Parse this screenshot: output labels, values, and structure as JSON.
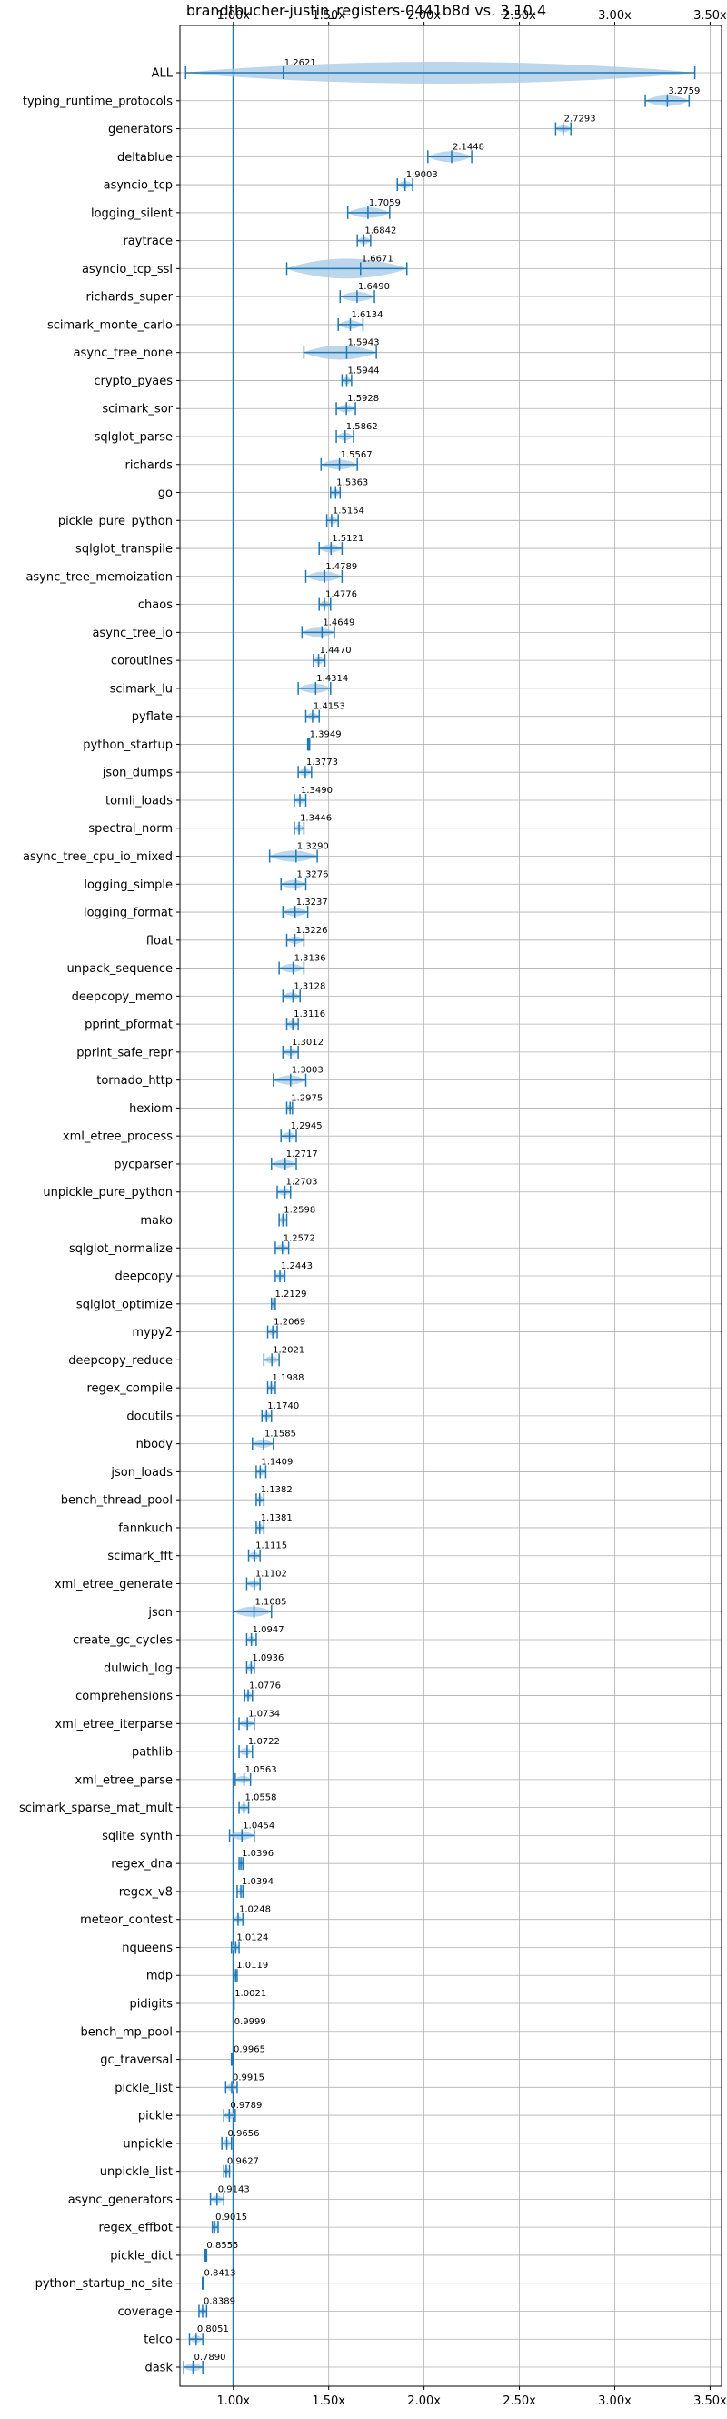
{
  "chart_data": {
    "type": "violin",
    "title": "brandtbucher-justin_registers-0441b8d vs. 3.10.4",
    "xlabel": "",
    "ylabel": "",
    "xlim": [
      0.72,
      3.56
    ],
    "x_ticks": [
      1.0,
      1.5,
      2.0,
      2.5,
      3.0,
      3.5
    ],
    "x_tick_labels": [
      "1.00x",
      "1.50x",
      "2.00x",
      "2.50x",
      "3.00x",
      "3.50x"
    ],
    "reference_line": 1.0,
    "grid": true,
    "colors": {
      "violin": "#a6c8e6",
      "line": "#1f77b4"
    },
    "benchmarks": [
      {
        "name": "ALL",
        "label": "1.2621",
        "mean": 1.2621,
        "min": 0.75,
        "max": 3.42
      },
      {
        "name": "typing_runtime_protocols",
        "label": "3.2759",
        "mean": 3.2759,
        "min": 3.16,
        "max": 3.39
      },
      {
        "name": "generators",
        "label": "2.7293",
        "mean": 2.7293,
        "min": 2.69,
        "max": 2.77
      },
      {
        "name": "deltablue",
        "label": "2.1448",
        "mean": 2.1448,
        "min": 2.02,
        "max": 2.25
      },
      {
        "name": "asyncio_tcp",
        "label": "1.9003",
        "mean": 1.9003,
        "min": 1.86,
        "max": 1.94
      },
      {
        "name": "logging_silent",
        "label": "1.7059",
        "mean": 1.7059,
        "min": 1.6,
        "max": 1.82
      },
      {
        "name": "raytrace",
        "label": "1.6842",
        "mean": 1.6842,
        "min": 1.65,
        "max": 1.72
      },
      {
        "name": "asyncio_tcp_ssl",
        "label": "1.6671",
        "mean": 1.6671,
        "min": 1.28,
        "max": 1.91
      },
      {
        "name": "richards_super",
        "label": "1.6490",
        "mean": 1.649,
        "min": 1.56,
        "max": 1.74
      },
      {
        "name": "scimark_monte_carlo",
        "label": "1.6134",
        "mean": 1.6134,
        "min": 1.55,
        "max": 1.68
      },
      {
        "name": "async_tree_none",
        "label": "1.5943",
        "mean": 1.5943,
        "min": 1.37,
        "max": 1.75
      },
      {
        "name": "crypto_pyaes",
        "label": "1.5944",
        "mean": 1.5944,
        "min": 1.57,
        "max": 1.62
      },
      {
        "name": "scimark_sor",
        "label": "1.5928",
        "mean": 1.5928,
        "min": 1.54,
        "max": 1.64
      },
      {
        "name": "sqlglot_parse",
        "label": "1.5862",
        "mean": 1.5862,
        "min": 1.54,
        "max": 1.63
      },
      {
        "name": "richards",
        "label": "1.5567",
        "mean": 1.5567,
        "min": 1.46,
        "max": 1.65
      },
      {
        "name": "go",
        "label": "1.5363",
        "mean": 1.5363,
        "min": 1.51,
        "max": 1.56
      },
      {
        "name": "pickle_pure_python",
        "label": "1.5154",
        "mean": 1.5154,
        "min": 1.49,
        "max": 1.55
      },
      {
        "name": "sqlglot_transpile",
        "label": "1.5121",
        "mean": 1.5121,
        "min": 1.45,
        "max": 1.57
      },
      {
        "name": "async_tree_memoization",
        "label": "1.4789",
        "mean": 1.4789,
        "min": 1.38,
        "max": 1.57
      },
      {
        "name": "chaos",
        "label": "1.4776",
        "mean": 1.4776,
        "min": 1.45,
        "max": 1.51
      },
      {
        "name": "async_tree_io",
        "label": "1.4649",
        "mean": 1.4649,
        "min": 1.36,
        "max": 1.53
      },
      {
        "name": "coroutines",
        "label": "1.4470",
        "mean": 1.447,
        "min": 1.42,
        "max": 1.48
      },
      {
        "name": "scimark_lu",
        "label": "1.4314",
        "mean": 1.4314,
        "min": 1.34,
        "max": 1.51
      },
      {
        "name": "pyflate",
        "label": "1.4153",
        "mean": 1.4153,
        "min": 1.38,
        "max": 1.45
      },
      {
        "name": "python_startup",
        "label": "1.3949",
        "mean": 1.3949,
        "min": 1.39,
        "max": 1.4
      },
      {
        "name": "json_dumps",
        "label": "1.3773",
        "mean": 1.3773,
        "min": 1.34,
        "max": 1.41
      },
      {
        "name": "tomli_loads",
        "label": "1.3490",
        "mean": 1.349,
        "min": 1.32,
        "max": 1.38
      },
      {
        "name": "spectral_norm",
        "label": "1.3446",
        "mean": 1.3446,
        "min": 1.32,
        "max": 1.37
      },
      {
        "name": "async_tree_cpu_io_mixed",
        "label": "1.3290",
        "mean": 1.329,
        "min": 1.19,
        "max": 1.44
      },
      {
        "name": "logging_simple",
        "label": "1.3276",
        "mean": 1.3276,
        "min": 1.25,
        "max": 1.38
      },
      {
        "name": "logging_format",
        "label": "1.3237",
        "mean": 1.3237,
        "min": 1.26,
        "max": 1.39
      },
      {
        "name": "float",
        "label": "1.3226",
        "mean": 1.3226,
        "min": 1.28,
        "max": 1.37
      },
      {
        "name": "unpack_sequence",
        "label": "1.3136",
        "mean": 1.3136,
        "min": 1.24,
        "max": 1.37
      },
      {
        "name": "deepcopy_memo",
        "label": "1.3128",
        "mean": 1.3128,
        "min": 1.26,
        "max": 1.35
      },
      {
        "name": "pprint_pformat",
        "label": "1.3116",
        "mean": 1.3116,
        "min": 1.28,
        "max": 1.34
      },
      {
        "name": "pprint_safe_repr",
        "label": "1.3012",
        "mean": 1.3012,
        "min": 1.26,
        "max": 1.34
      },
      {
        "name": "tornado_http",
        "label": "1.3003",
        "mean": 1.3003,
        "min": 1.21,
        "max": 1.38
      },
      {
        "name": "hexiom",
        "label": "1.2975",
        "mean": 1.2975,
        "min": 1.28,
        "max": 1.31
      },
      {
        "name": "xml_etree_process",
        "label": "1.2945",
        "mean": 1.2945,
        "min": 1.25,
        "max": 1.33
      },
      {
        "name": "pycparser",
        "label": "1.2717",
        "mean": 1.2717,
        "min": 1.2,
        "max": 1.33
      },
      {
        "name": "unpickle_pure_python",
        "label": "1.2703",
        "mean": 1.2703,
        "min": 1.23,
        "max": 1.3
      },
      {
        "name": "mako",
        "label": "1.2598",
        "mean": 1.2598,
        "min": 1.24,
        "max": 1.28
      },
      {
        "name": "sqlglot_normalize",
        "label": "1.2572",
        "mean": 1.2572,
        "min": 1.22,
        "max": 1.29
      },
      {
        "name": "deepcopy",
        "label": "1.2443",
        "mean": 1.2443,
        "min": 1.22,
        "max": 1.27
      },
      {
        "name": "sqlglot_optimize",
        "label": "1.2129",
        "mean": 1.2129,
        "min": 1.2,
        "max": 1.22
      },
      {
        "name": "mypy2",
        "label": "1.2069",
        "mean": 1.2069,
        "min": 1.18,
        "max": 1.23
      },
      {
        "name": "deepcopy_reduce",
        "label": "1.2021",
        "mean": 1.2021,
        "min": 1.16,
        "max": 1.24
      },
      {
        "name": "regex_compile",
        "label": "1.1988",
        "mean": 1.1988,
        "min": 1.18,
        "max": 1.22
      },
      {
        "name": "docutils",
        "label": "1.1740",
        "mean": 1.174,
        "min": 1.15,
        "max": 1.2
      },
      {
        "name": "nbody",
        "label": "1.1585",
        "mean": 1.1585,
        "min": 1.1,
        "max": 1.21
      },
      {
        "name": "json_loads",
        "label": "1.1409",
        "mean": 1.1409,
        "min": 1.12,
        "max": 1.17
      },
      {
        "name": "bench_thread_pool",
        "label": "1.1382",
        "mean": 1.1382,
        "min": 1.12,
        "max": 1.16
      },
      {
        "name": "fannkuch",
        "label": "1.1381",
        "mean": 1.1381,
        "min": 1.12,
        "max": 1.16
      },
      {
        "name": "scimark_fft",
        "label": "1.1115",
        "mean": 1.1115,
        "min": 1.08,
        "max": 1.14
      },
      {
        "name": "xml_etree_generate",
        "label": "1.1102",
        "mean": 1.1102,
        "min": 1.07,
        "max": 1.14
      },
      {
        "name": "json",
        "label": "1.1085",
        "mean": 1.1085,
        "min": 1.0,
        "max": 1.2
      },
      {
        "name": "create_gc_cycles",
        "label": "1.0947",
        "mean": 1.0947,
        "min": 1.07,
        "max": 1.12
      },
      {
        "name": "dulwich_log",
        "label": "1.0936",
        "mean": 1.0936,
        "min": 1.07,
        "max": 1.11
      },
      {
        "name": "comprehensions",
        "label": "1.0776",
        "mean": 1.0776,
        "min": 1.06,
        "max": 1.1
      },
      {
        "name": "xml_etree_iterparse",
        "label": "1.0734",
        "mean": 1.0734,
        "min": 1.03,
        "max": 1.11
      },
      {
        "name": "pathlib",
        "label": "1.0722",
        "mean": 1.0722,
        "min": 1.03,
        "max": 1.1
      },
      {
        "name": "xml_etree_parse",
        "label": "1.0563",
        "mean": 1.0563,
        "min": 1.01,
        "max": 1.09
      },
      {
        "name": "scimark_sparse_mat_mult",
        "label": "1.0558",
        "mean": 1.0558,
        "min": 1.03,
        "max": 1.08
      },
      {
        "name": "sqlite_synth",
        "label": "1.0454",
        "mean": 1.0454,
        "min": 0.98,
        "max": 1.11
      },
      {
        "name": "regex_dna",
        "label": "1.0396",
        "mean": 1.0396,
        "min": 1.03,
        "max": 1.05
      },
      {
        "name": "regex_v8",
        "label": "1.0394",
        "mean": 1.0394,
        "min": 1.02,
        "max": 1.05
      },
      {
        "name": "meteor_contest",
        "label": "1.0248",
        "mean": 1.0248,
        "min": 1.0,
        "max": 1.05
      },
      {
        "name": "nqueens",
        "label": "1.0124",
        "mean": 1.0124,
        "min": 0.99,
        "max": 1.03
      },
      {
        "name": "mdp",
        "label": "1.0119",
        "mean": 1.0119,
        "min": 1.0,
        "max": 1.02
      },
      {
        "name": "pidigits",
        "label": "1.0021",
        "mean": 1.0021,
        "min": 1.0,
        "max": 1.004
      },
      {
        "name": "bench_mp_pool",
        "label": "0.9999",
        "mean": 0.9999,
        "min": 0.9999,
        "max": 0.9999
      },
      {
        "name": "gc_traversal",
        "label": "0.9965",
        "mean": 0.9965,
        "min": 0.99,
        "max": 1.0
      },
      {
        "name": "pickle_list",
        "label": "0.9915",
        "mean": 0.9915,
        "min": 0.96,
        "max": 1.02
      },
      {
        "name": "pickle",
        "label": "0.9789",
        "mean": 0.9789,
        "min": 0.95,
        "max": 1.01
      },
      {
        "name": "unpickle",
        "label": "0.9656",
        "mean": 0.9656,
        "min": 0.94,
        "max": 0.99
      },
      {
        "name": "unpickle_list",
        "label": "0.9627",
        "mean": 0.9627,
        "min": 0.95,
        "max": 0.98
      },
      {
        "name": "async_generators",
        "label": "0.9143",
        "mean": 0.9143,
        "min": 0.88,
        "max": 0.95
      },
      {
        "name": "regex_effbot",
        "label": "0.9015",
        "mean": 0.9015,
        "min": 0.89,
        "max": 0.92
      },
      {
        "name": "pickle_dict",
        "label": "0.8555",
        "mean": 0.8555,
        "min": 0.85,
        "max": 0.86
      },
      {
        "name": "python_startup_no_site",
        "label": "0.8413",
        "mean": 0.8413,
        "min": 0.838,
        "max": 0.845
      },
      {
        "name": "coverage",
        "label": "0.8389",
        "mean": 0.8389,
        "min": 0.82,
        "max": 0.86
      },
      {
        "name": "telco",
        "label": "0.8051",
        "mean": 0.8051,
        "min": 0.77,
        "max": 0.84
      },
      {
        "name": "dask",
        "label": "0.7890",
        "mean": 0.789,
        "min": 0.74,
        "max": 0.84
      }
    ]
  }
}
